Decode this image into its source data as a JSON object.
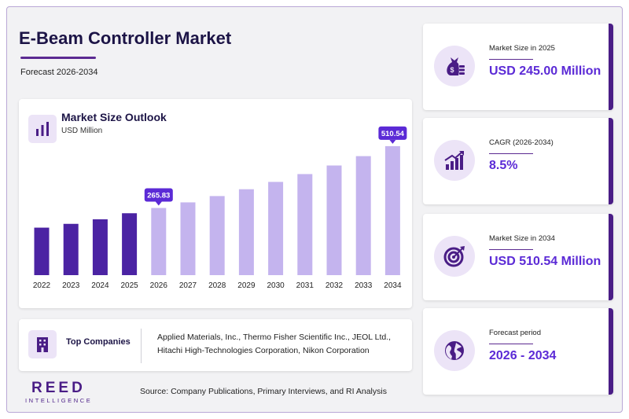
{
  "header": {
    "title": "E-Beam Controller Market",
    "subtitle": "Forecast 2026-2034"
  },
  "chart_card": {
    "title": "Market Size Outlook",
    "unit": "USD Million",
    "icon": "bar-chart-icon"
  },
  "chart_data": {
    "type": "bar",
    "title": "Market Size Outlook",
    "ylabel": "USD Million",
    "categories": [
      "2022",
      "2023",
      "2024",
      "2025",
      "2026",
      "2027",
      "2028",
      "2029",
      "2030",
      "2031",
      "2032",
      "2033",
      "2034"
    ],
    "values": [
      188,
      203,
      221,
      245.0,
      265.83,
      288,
      313,
      340,
      369,
      400,
      434,
      471,
      510.54
    ],
    "callouts": [
      {
        "category": "2026",
        "label": "265.83"
      },
      {
        "category": "2034",
        "label": "510.54"
      }
    ],
    "ylim": [
      0,
      560
    ],
    "grid": false,
    "colors": {
      "historical": "#4b23a3",
      "forecast": "#c4b4ee",
      "callout": "#5b2ad6"
    }
  },
  "companies": {
    "label": "Top Companies",
    "icon": "building-icon",
    "list": "Applied Materials, Inc., Thermo Fisher Scientific Inc., JEOL Ltd., Hitachi High-Technologies Corporation, Nikon Corporation"
  },
  "stats": [
    {
      "label": "Market Size in 2025",
      "value": "USD 245.00 Million",
      "icon": "money-bag-icon"
    },
    {
      "label": "CAGR (2026-2034)",
      "value": "8.5%",
      "icon": "growth-chart-icon"
    },
    {
      "label": "Market Size in 2034",
      "value": "USD 510.54 Million",
      "icon": "target-icon"
    },
    {
      "label": "Forecast period",
      "value": "2026 - 2034",
      "icon": "globe-icon"
    }
  ],
  "logo": {
    "main": "REED",
    "sub": "INTELLIGENCE"
  },
  "source": "Source: Company Publications, Primary Interviews, and RI Analysis",
  "colors": {
    "brand": "#4a1d86",
    "accent": "#5b2ad6",
    "title": "#1c1446"
  }
}
